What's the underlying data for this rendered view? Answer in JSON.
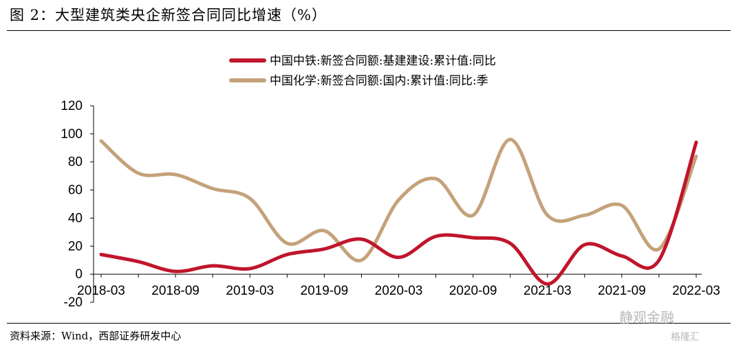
{
  "figure": {
    "title": "图 2：大型建筑类央企新签合同同比增速（%）",
    "source": "资料来源：Wind，西部证券研发中心",
    "watermark": "静观金融",
    "watermark2": "格隆汇"
  },
  "chart_data": {
    "type": "line",
    "title": "",
    "xlabel": "",
    "ylabel": "",
    "ylim": [
      -20,
      120
    ],
    "yticks": [
      -20,
      0,
      20,
      40,
      60,
      80,
      100,
      120
    ],
    "x_tick_labels": [
      "2018-03",
      "2018-09",
      "2019-03",
      "2019-09",
      "2020-03",
      "2020-09",
      "2021-03",
      "2021-09",
      "2022-03"
    ],
    "x": [
      "2018-03",
      "2018-06",
      "2018-09",
      "2018-12",
      "2019-03",
      "2019-06",
      "2019-09",
      "2019-12",
      "2020-03",
      "2020-06",
      "2020-09",
      "2020-12",
      "2021-03",
      "2021-06",
      "2021-09",
      "2021-12",
      "2022-03"
    ],
    "legend_position": "top-center",
    "grid": false,
    "series": [
      {
        "name": "中国中铁:新签合同额:基建建设:累计值:同比",
        "color": "#c0152b",
        "values": [
          14,
          9,
          2,
          6,
          4,
          14,
          18,
          25,
          12,
          27,
          26,
          22,
          -7,
          21,
          13,
          10,
          94
        ]
      },
      {
        "name": "中国化学:新签合同额:国内:累计值:同比:季",
        "color": "#c4a27a",
        "values": [
          95,
          72,
          71,
          61,
          54,
          22,
          31,
          10,
          53,
          68,
          42,
          96,
          42,
          42,
          49,
          18,
          84
        ]
      }
    ]
  }
}
